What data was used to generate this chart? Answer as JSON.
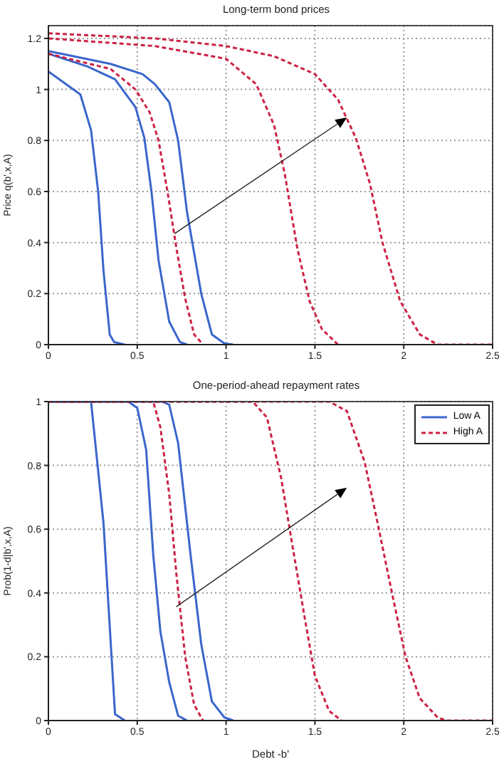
{
  "chart_data": [
    {
      "type": "line",
      "title": "Long-term bond prices",
      "ylabel": "Price q(b',x,A)",
      "xlim": [
        0,
        2.5
      ],
      "ylim": [
        0,
        1.25
      ],
      "xticks": [
        0,
        0.5,
        1,
        1.5,
        2,
        2.5
      ],
      "yticks": [
        0,
        0.2,
        0.4,
        0.6,
        0.8,
        1,
        1.2
      ],
      "grid": true,
      "series": [
        {
          "color": "#3a66cc",
          "line_style": "solid",
          "x": [
            0,
            0.18,
            0.24,
            0.28,
            0.31,
            0.345,
            0.37,
            0.43
          ],
          "values": [
            1.07,
            0.98,
            0.84,
            0.6,
            0.29,
            0.04,
            0.01,
            0
          ]
        },
        {
          "color": "#3a66cc",
          "line_style": "solid",
          "x": [
            0,
            0.22,
            0.375,
            0.49,
            0.54,
            0.58,
            0.62,
            0.68,
            0.74,
            0.78
          ],
          "values": [
            1.14,
            1.09,
            1.04,
            0.93,
            0.81,
            0.6,
            0.33,
            0.09,
            0.01,
            0
          ]
        },
        {
          "color": "#3a66cc",
          "line_style": "solid",
          "x": [
            0,
            0.35,
            0.53,
            0.6,
            0.68,
            0.73,
            0.78,
            0.86,
            0.92,
            0.99,
            1.04
          ],
          "values": [
            1.15,
            1.1,
            1.06,
            1.02,
            0.95,
            0.8,
            0.52,
            0.2,
            0.04,
            0.005,
            0
          ]
        },
        {
          "color": "#cc2244",
          "line_style": "dashed",
          "x": [
            0,
            0.35,
            0.49,
            0.57,
            0.62,
            0.67,
            0.72,
            0.77,
            0.82,
            0.87
          ],
          "values": [
            1.14,
            1.08,
            1,
            0.91,
            0.8,
            0.6,
            0.38,
            0.18,
            0.04,
            0
          ]
        },
        {
          "color": "#cc2244",
          "line_style": "dashed",
          "x": [
            0,
            0.6,
            1,
            1.17,
            1.27,
            1.33,
            1.4,
            1.47,
            1.54,
            1.63
          ],
          "values": [
            1.2,
            1.17,
            1.12,
            1.02,
            0.86,
            0.67,
            0.38,
            0.17,
            0.06,
            0
          ]
        },
        {
          "color": "#cc2244",
          "line_style": "dashed",
          "x": [
            0,
            0.6,
            1,
            1.27,
            1.5,
            1.63,
            1.73,
            1.81,
            1.88,
            1.98,
            2.09,
            2.19,
            2.5
          ],
          "values": [
            1.22,
            1.2,
            1.17,
            1.13,
            1.06,
            0.96,
            0.81,
            0.63,
            0.4,
            0.17,
            0.04,
            0,
            0
          ]
        }
      ]
    },
    {
      "type": "line",
      "title": "One-period-ahead repayment rates",
      "xlabel": "Debt -b'",
      "ylabel": "Prob(1-d|b',x,A)",
      "xlim": [
        0,
        2.5
      ],
      "ylim": [
        0,
        1
      ],
      "xticks": [
        0,
        0.5,
        1,
        1.5,
        2,
        2.5
      ],
      "yticks": [
        0,
        0.2,
        0.4,
        0.6,
        0.8,
        1
      ],
      "grid": true,
      "legend": "top right",
      "series": [
        {
          "name": "Low A",
          "color": "#3a66cc",
          "line_style": "solid",
          "x": [
            0,
            0.24,
            0.31,
            0.35,
            0.375,
            0.43
          ],
          "values": [
            1,
            1,
            0.62,
            0.25,
            0.02,
            0
          ]
        },
        {
          "color": "#3a66cc",
          "line_style": "solid",
          "x": [
            0,
            0.45,
            0.5,
            0.55,
            0.59,
            0.63,
            0.68,
            0.73,
            0.78
          ],
          "values": [
            1,
            1,
            0.98,
            0.85,
            0.52,
            0.28,
            0.12,
            0.015,
            0
          ]
        },
        {
          "color": "#3a66cc",
          "line_style": "solid",
          "x": [
            0,
            0.64,
            0.68,
            0.73,
            0.8,
            0.86,
            0.92,
            0.99,
            1.04
          ],
          "values": [
            1,
            1,
            0.99,
            0.87,
            0.52,
            0.24,
            0.06,
            0.01,
            0
          ]
        },
        {
          "name": "High A",
          "color": "#cc2244",
          "line_style": "dashed",
          "x": [
            0,
            0.59,
            0.63,
            0.68,
            0.72,
            0.77,
            0.82,
            0.87
          ],
          "values": [
            1,
            1,
            0.92,
            0.71,
            0.46,
            0.2,
            0.05,
            0
          ]
        },
        {
          "color": "#cc2244",
          "line_style": "dashed",
          "x": [
            0,
            1.15,
            1.23,
            1.31,
            1.37,
            1.44,
            1.5,
            1.58,
            1.65
          ],
          "values": [
            1,
            1,
            0.95,
            0.76,
            0.56,
            0.33,
            0.14,
            0.03,
            0
          ]
        },
        {
          "color": "#cc2244",
          "line_style": "dashed",
          "x": [
            0,
            1.58,
            1.68,
            1.78,
            1.86,
            1.93,
            2.01,
            2.09,
            2.19,
            2.24,
            2.5
          ],
          "values": [
            1,
            1,
            0.97,
            0.81,
            0.6,
            0.41,
            0.2,
            0.07,
            0.01,
            0,
            0
          ]
        }
      ]
    }
  ]
}
